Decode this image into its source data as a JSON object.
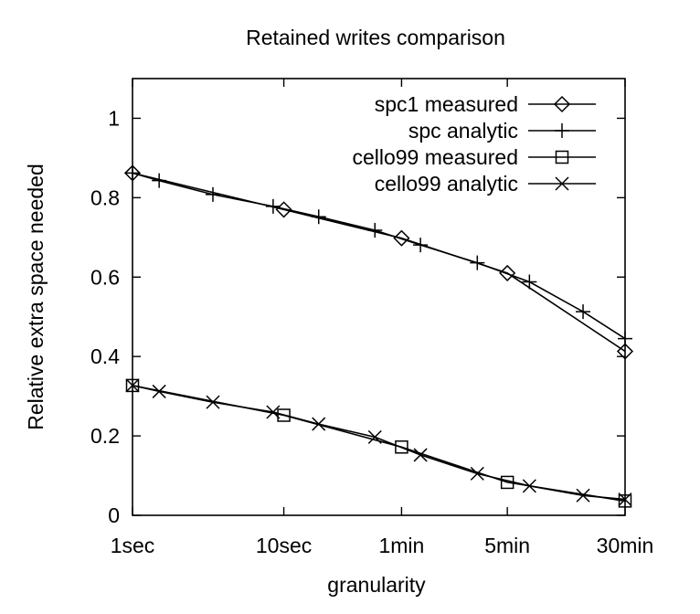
{
  "chart_data": {
    "type": "line",
    "title": "Retained writes comparison",
    "xlabel": "granularity",
    "ylabel": "Relative extra space needed",
    "x_scale": "log",
    "x_unit": "seconds",
    "xlim": [
      1,
      1800
    ],
    "ylim": [
      0,
      1.1
    ],
    "x_ticks": [
      {
        "value": 1,
        "label": "1sec"
      },
      {
        "value": 10,
        "label": "10sec"
      },
      {
        "value": 60,
        "label": "1min"
      },
      {
        "value": 300,
        "label": "5min"
      },
      {
        "value": 1800,
        "label": "30min"
      }
    ],
    "y_ticks": [
      {
        "value": 0,
        "label": "0"
      },
      {
        "value": 0.2,
        "label": "0.2"
      },
      {
        "value": 0.4,
        "label": "0.4"
      },
      {
        "value": 0.6,
        "label": "0.6"
      },
      {
        "value": 0.8,
        "label": "0.8"
      },
      {
        "value": 1,
        "label": "1"
      }
    ],
    "grid": false,
    "legend_position": "top-right",
    "series": [
      {
        "name": "spc1 measured",
        "marker": "diamond",
        "x": [
          1,
          10,
          60,
          300,
          1800
        ],
        "y": [
          0.862,
          0.77,
          0.698,
          0.61,
          0.413
        ]
      },
      {
        "name": "spc analytic",
        "marker": "plus",
        "x": [
          1,
          1.5,
          3.4,
          8.5,
          17,
          40,
          80,
          190,
          420,
          950,
          1800
        ],
        "y": [
          0.862,
          0.843,
          0.808,
          0.778,
          0.752,
          0.718,
          0.681,
          0.636,
          0.588,
          0.513,
          0.445
        ]
      },
      {
        "name": "cello99 measured",
        "marker": "square",
        "x": [
          1,
          10,
          60,
          300,
          1800
        ],
        "y": [
          0.327,
          0.252,
          0.172,
          0.083,
          0.036
        ]
      },
      {
        "name": "cello99 analytic",
        "marker": "cross",
        "x": [
          1,
          1.5,
          3.4,
          8.5,
          17,
          40,
          80,
          190,
          420,
          950,
          1800
        ],
        "y": [
          0.327,
          0.312,
          0.285,
          0.26,
          0.23,
          0.197,
          0.152,
          0.105,
          0.074,
          0.05,
          0.04
        ]
      }
    ]
  }
}
